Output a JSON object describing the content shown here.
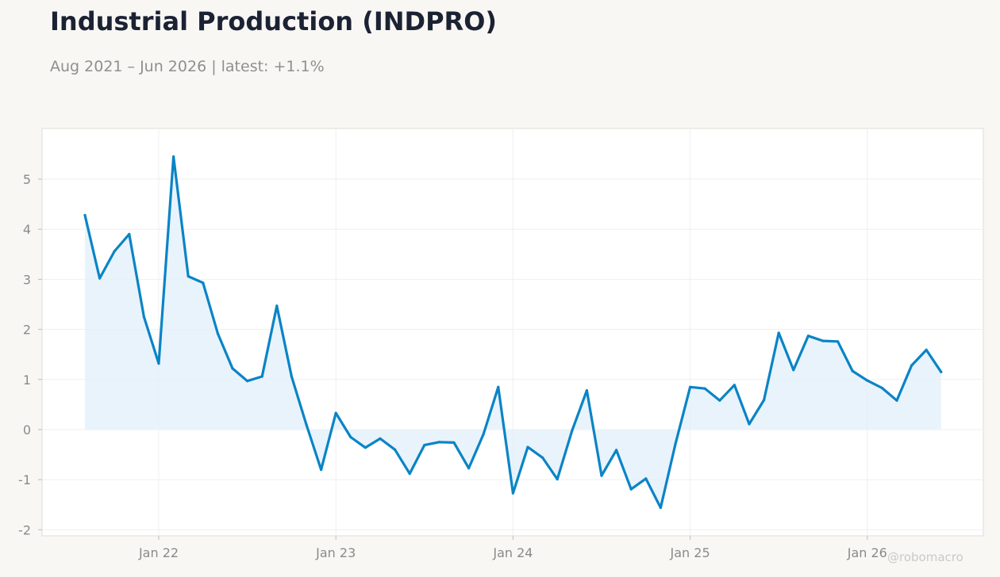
{
  "header": {
    "title": "Industrial Production (INDPRO)",
    "subtitle": "Aug 2021 – Jun 2026 | latest: +1.1%"
  },
  "watermark": "@robomacro",
  "colors": {
    "background": "#f8f7f4",
    "plot_background": "#ffffff",
    "line": "#0a84c6",
    "fill": "#e3f0fa"
  },
  "chart_data": {
    "type": "area",
    "title": "Industrial Production (INDPRO)",
    "subtitle": "Aug 2021 – Jun 2026 | latest: +1.1%",
    "xlabel": "",
    "ylabel": "",
    "grid": true,
    "ylim": [
      -2.1,
      6.0
    ],
    "y_ticks": [
      -2,
      -1,
      0,
      1,
      2,
      3,
      4,
      5
    ],
    "x_ticks": [
      {
        "label": "Jan 22",
        "date": "2022-01"
      },
      {
        "label": "Jan 23",
        "date": "2023-01"
      },
      {
        "label": "Jan 24",
        "date": "2024-01"
      },
      {
        "label": "Jan 25",
        "date": "2025-01"
      },
      {
        "label": "Jan 26",
        "date": "2026-01"
      }
    ],
    "x": [
      "2021-08",
      "2021-09",
      "2021-10",
      "2021-11",
      "2021-12",
      "2022-01",
      "2022-02",
      "2022-03",
      "2022-04",
      "2022-05",
      "2022-06",
      "2022-07",
      "2022-08",
      "2022-09",
      "2022-10",
      "2022-11",
      "2022-12",
      "2023-01",
      "2023-02",
      "2023-03",
      "2023-04",
      "2023-05",
      "2023-06",
      "2023-07",
      "2023-08",
      "2023-09",
      "2023-10",
      "2023-11",
      "2023-12",
      "2024-01",
      "2024-02",
      "2024-03",
      "2024-04",
      "2024-05",
      "2024-06",
      "2024-07",
      "2024-08",
      "2024-09",
      "2024-10",
      "2024-11",
      "2024-12",
      "2025-01",
      "2025-02",
      "2025-03",
      "2025-04",
      "2025-05",
      "2025-06",
      "2025-07",
      "2025-08",
      "2025-09",
      "2025-10",
      "2025-11",
      "2025-12",
      "2026-01",
      "2026-02",
      "2026-03",
      "2026-04",
      "2026-05",
      "2026-06"
    ],
    "series": [
      {
        "values": [
          4.28,
          3.02,
          3.56,
          3.9,
          2.25,
          1.32,
          5.45,
          3.06,
          2.93,
          1.92,
          1.22,
          0.97,
          1.06,
          2.47,
          1.06,
          0.1,
          -0.8,
          0.33,
          -0.15,
          -0.36,
          -0.18,
          -0.4,
          -0.88,
          -0.31,
          -0.25,
          -0.26,
          -0.77,
          -0.09,
          0.85,
          -1.27,
          -0.35,
          -0.56,
          -0.99,
          -0.02,
          0.78,
          -0.92,
          -0.41,
          -1.19,
          -0.98,
          -1.56,
          -0.29,
          0.85,
          0.82,
          0.58,
          0.89,
          0.11,
          0.59,
          1.93,
          1.19,
          1.87,
          1.77,
          1.76,
          1.17,
          0.98,
          0.83,
          0.58,
          1.28,
          1.59,
          1.15
        ]
      }
    ]
  }
}
